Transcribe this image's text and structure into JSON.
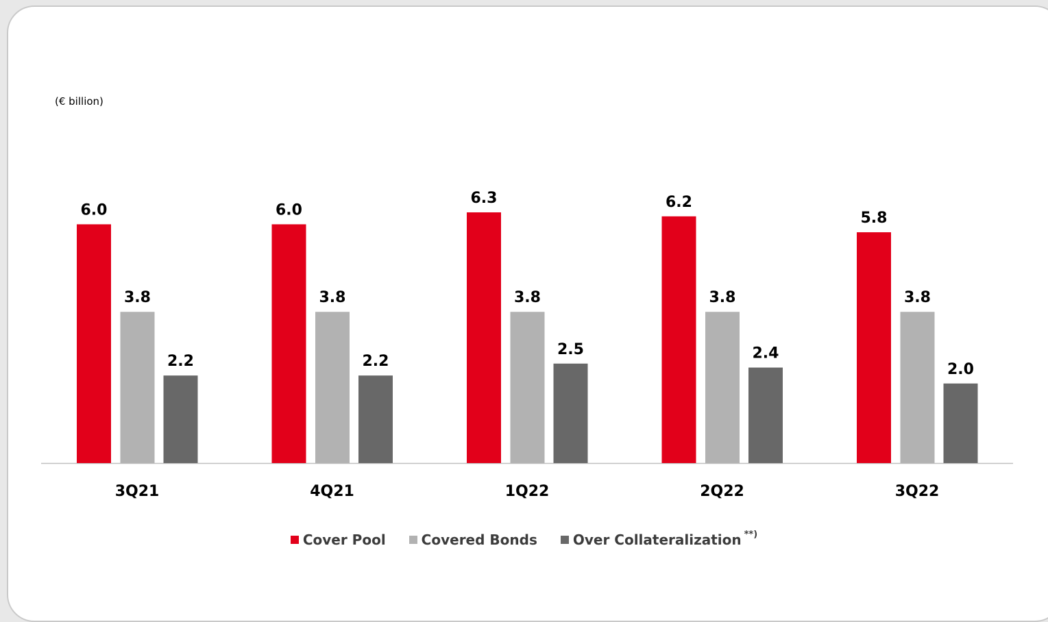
{
  "chart_data": {
    "type": "bar",
    "unit_label": "(€ billion)",
    "categories": [
      "3Q21",
      "4Q21",
      "1Q22",
      "2Q22",
      "3Q22"
    ],
    "series": [
      {
        "name": "Cover Pool",
        "color": "#e2001a",
        "values": [
          6.0,
          6.0,
          6.3,
          6.2,
          5.8
        ]
      },
      {
        "name": "Covered Bonds",
        "color": "#b2b2b2",
        "values": [
          3.8,
          3.8,
          3.8,
          3.8,
          3.8
        ]
      },
      {
        "name": "Over Collateralization",
        "color": "#686868",
        "values": [
          2.2,
          2.2,
          2.5,
          2.4,
          2.0
        ]
      }
    ],
    "legend_note": "**)",
    "ylim": [
      0,
      6.3
    ],
    "grid": false,
    "legend_position": "bottom-center"
  }
}
